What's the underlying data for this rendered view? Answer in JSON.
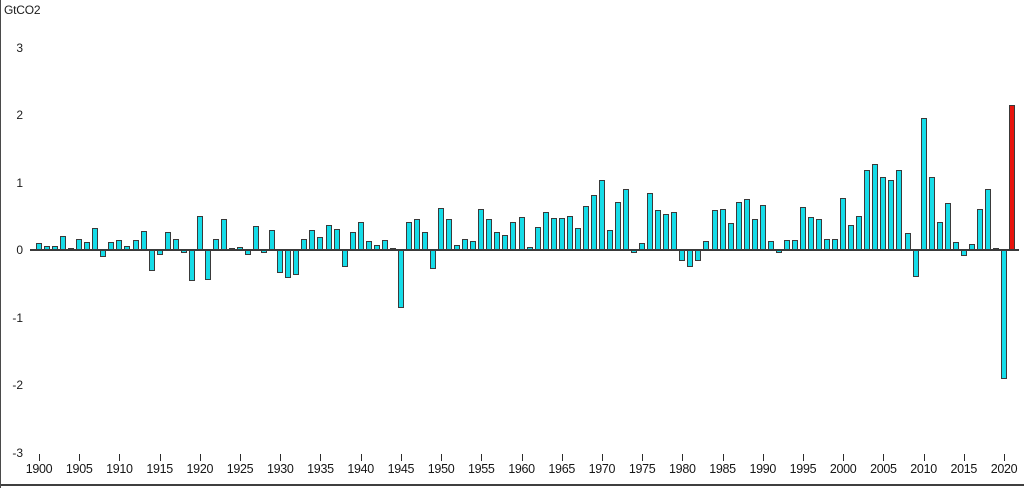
{
  "page": {
    "background": "#ffffff"
  },
  "chart_data": {
    "type": "bar",
    "title": "",
    "ylabel": "GtCO2",
    "xlabel": "",
    "grid": false,
    "legend": false,
    "ylim": [
      -3,
      3.3
    ],
    "yticks": [
      3,
      2,
      1,
      0,
      -1,
      -2,
      -3
    ],
    "xtick_years": [
      1900,
      1905,
      1910,
      1915,
      1920,
      1925,
      1930,
      1935,
      1940,
      1945,
      1950,
      1955,
      1960,
      1965,
      1970,
      1975,
      1980,
      1985,
      1990,
      1995,
      2000,
      2005,
      2010,
      2015,
      2020
    ],
    "bar_color": "#15dce8",
    "bar_outline_color": "#3a3a3a",
    "highlight": {
      "year": 2021,
      "color": "#e8140d"
    },
    "years": [
      1900,
      1901,
      1902,
      1903,
      1904,
      1905,
      1906,
      1907,
      1908,
      1909,
      1910,
      1911,
      1912,
      1913,
      1914,
      1915,
      1916,
      1917,
      1918,
      1919,
      1920,
      1921,
      1922,
      1923,
      1924,
      1925,
      1926,
      1927,
      1928,
      1929,
      1930,
      1931,
      1932,
      1933,
      1934,
      1935,
      1936,
      1937,
      1938,
      1939,
      1940,
      1941,
      1942,
      1943,
      1944,
      1945,
      1946,
      1947,
      1948,
      1949,
      1950,
      1951,
      1952,
      1953,
      1954,
      1955,
      1956,
      1957,
      1958,
      1959,
      1960,
      1961,
      1962,
      1963,
      1964,
      1965,
      1966,
      1967,
      1968,
      1969,
      1970,
      1971,
      1972,
      1973,
      1974,
      1975,
      1976,
      1977,
      1978,
      1979,
      1980,
      1981,
      1982,
      1983,
      1984,
      1985,
      1986,
      1987,
      1988,
      1989,
      1990,
      1991,
      1992,
      1993,
      1994,
      1995,
      1996,
      1997,
      1998,
      1999,
      2000,
      2001,
      2002,
      2003,
      2004,
      2005,
      2006,
      2007,
      2008,
      2009,
      2010,
      2011,
      2012,
      2013,
      2014,
      2015,
      2016,
      2017,
      2018,
      2019,
      2020,
      2021
    ],
    "values": [
      0.1,
      0.06,
      0.06,
      0.21,
      0.01,
      0.16,
      0.12,
      0.32,
      -0.11,
      0.12,
      0.15,
      0.06,
      0.15,
      0.28,
      -0.31,
      -0.07,
      0.26,
      0.16,
      -0.05,
      -0.46,
      0.5,
      -0.44,
      0.16,
      0.46,
      0.03,
      0.05,
      -0.07,
      0.35,
      -0.04,
      0.3,
      -0.34,
      -0.42,
      -0.37,
      0.17,
      0.3,
      0.19,
      0.37,
      0.31,
      -0.25,
      0.26,
      0.41,
      0.14,
      0.07,
      0.15,
      0.01,
      -0.86,
      0.42,
      0.46,
      0.26,
      -0.28,
      0.62,
      0.46,
      0.07,
      0.17,
      0.13,
      0.61,
      0.46,
      0.26,
      0.22,
      0.42,
      0.49,
      0.04,
      0.34,
      0.56,
      0.47,
      0.48,
      0.5,
      0.32,
      0.65,
      0.81,
      1.03,
      0.3,
      0.71,
      0.9,
      -0.04,
      0.1,
      0.85,
      0.59,
      0.53,
      0.56,
      -0.17,
      -0.25,
      -0.17,
      0.14,
      0.6,
      0.61,
      0.4,
      0.71,
      0.75,
      0.46,
      0.66,
      0.14,
      -0.04,
      0.15,
      0.15,
      0.64,
      0.49,
      0.46,
      0.17,
      0.17,
      0.77,
      0.37,
      0.5,
      1.18,
      1.27,
      1.08,
      1.03,
      1.19,
      0.25,
      -0.4,
      1.95,
      1.08,
      0.42,
      0.7,
      0.12,
      -0.09,
      0.09,
      0.61,
      0.9,
      0.02,
      -1.91,
      2.15
    ]
  }
}
